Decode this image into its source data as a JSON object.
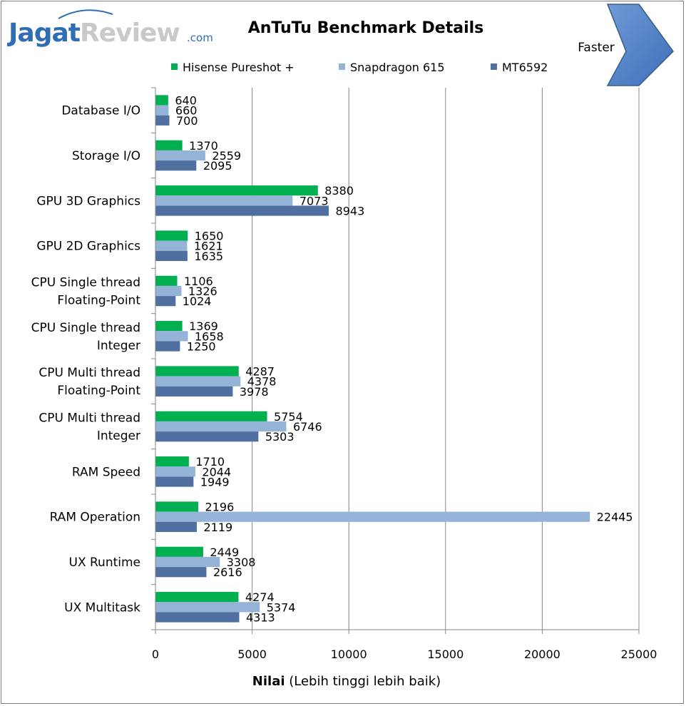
{
  "logo": {
    "part1": "Jagat",
    "part2": "Review",
    "suffix": ".com"
  },
  "faster_label": "Faster",
  "chart_data": {
    "type": "bar",
    "orientation": "horizontal",
    "title": "AnTuTu Benchmark Details",
    "xlabel_bold": "Nilai",
    "xlabel_rest": " (Lebih tinggi lebih baik)",
    "xlim": [
      0,
      25000
    ],
    "xticks": [
      0,
      5000,
      10000,
      15000,
      20000,
      25000
    ],
    "legend_position": "top",
    "categories": [
      [
        "Database I/O"
      ],
      [
        "Storage I/O"
      ],
      [
        "GPU 3D Graphics"
      ],
      [
        "GPU 2D Graphics"
      ],
      [
        "CPU Single thread",
        "Floating-Point"
      ],
      [
        "CPU Single thread",
        "Integer"
      ],
      [
        "CPU Multi thread",
        "Floating-Point"
      ],
      [
        "CPU Multi thread",
        "Integer"
      ],
      [
        "RAM Speed"
      ],
      [
        "RAM Operation"
      ],
      [
        "UX Runtime"
      ],
      [
        "UX Multitask"
      ]
    ],
    "series": [
      {
        "name": "Hisense Pureshot +",
        "color": "#00b050",
        "values": [
          640,
          1370,
          8380,
          1650,
          1106,
          1369,
          4287,
          5754,
          1710,
          2196,
          2449,
          4274
        ]
      },
      {
        "name": "Snapdragon 615",
        "color": "#95b3d7",
        "values": [
          660,
          2559,
          7073,
          1621,
          1326,
          1658,
          4378,
          6746,
          2044,
          22445,
          3308,
          5374
        ]
      },
      {
        "name": "MT6592",
        "color": "#4f6fa0",
        "values": [
          700,
          2095,
          8943,
          1635,
          1024,
          1250,
          3978,
          5303,
          1949,
          2119,
          2616,
          4313
        ]
      }
    ]
  }
}
